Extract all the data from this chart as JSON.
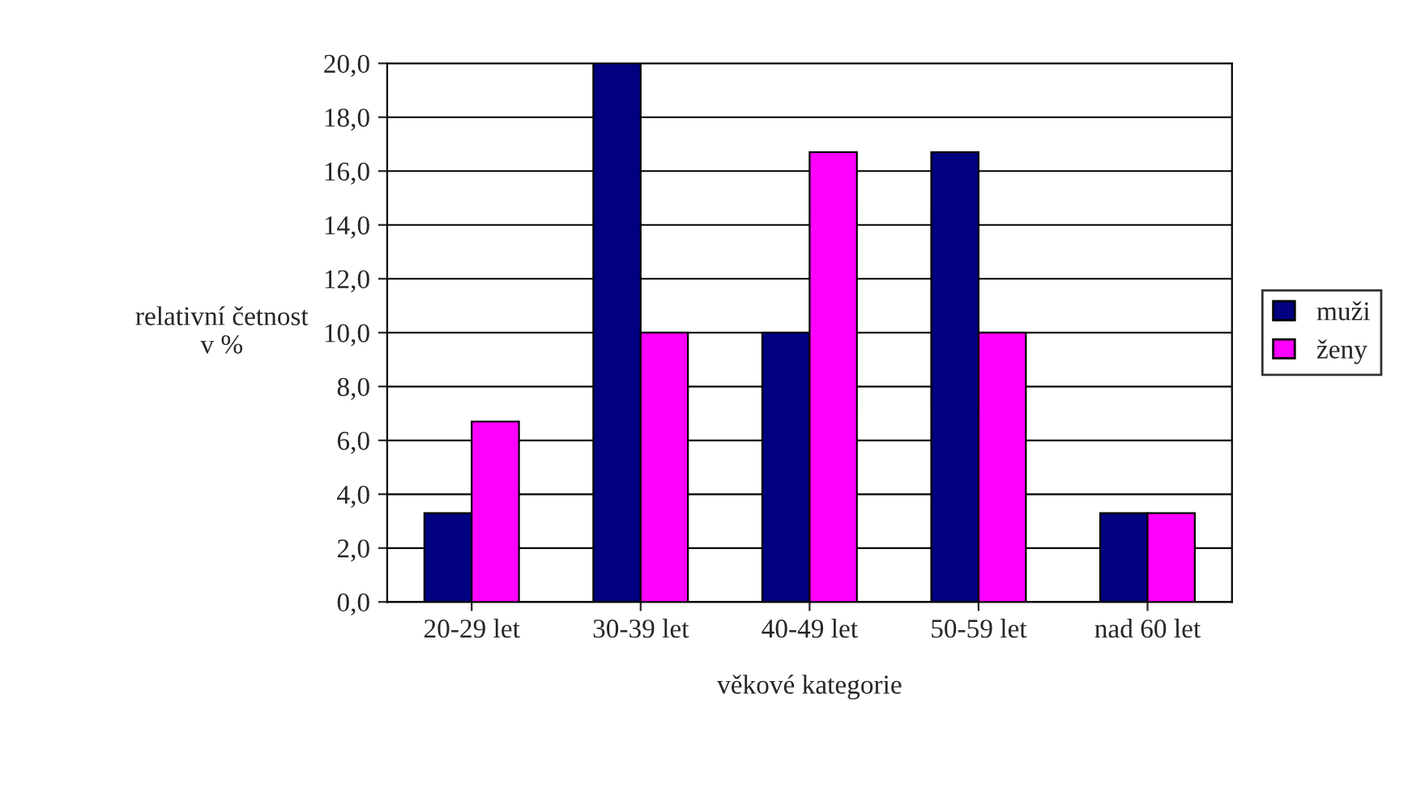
{
  "chart_data": {
    "type": "bar",
    "xlabel": "věkové kategorie",
    "ylabel": "relativní četnost\nv %",
    "categories": [
      "20-29 let",
      "30-39 let",
      "40-49 let",
      "50-59 let",
      "nad 60 let"
    ],
    "series": [
      {
        "name": "muži",
        "color": "#000080",
        "values": [
          3.3,
          20.0,
          10.0,
          16.7,
          3.3
        ]
      },
      {
        "name": "ženy",
        "color": "#ff00ff",
        "values": [
          6.7,
          10.0,
          16.7,
          10.0,
          3.3
        ]
      }
    ],
    "ylim": [
      0,
      20
    ],
    "yticks": [
      {
        "value": 0,
        "label": "0,0"
      },
      {
        "value": 2,
        "label": "2,0"
      },
      {
        "value": 4,
        "label": "4,0"
      },
      {
        "value": 6,
        "label": "6,0"
      },
      {
        "value": 8,
        "label": "8,0"
      },
      {
        "value": 10,
        "label": "10,0"
      },
      {
        "value": 12,
        "label": "12,0"
      },
      {
        "value": 14,
        "label": "14,0"
      },
      {
        "value": 16,
        "label": "16,0"
      },
      {
        "value": 18,
        "label": "18,0"
      },
      {
        "value": 20,
        "label": "20,0"
      }
    ],
    "grid": "y",
    "legend": "right"
  }
}
